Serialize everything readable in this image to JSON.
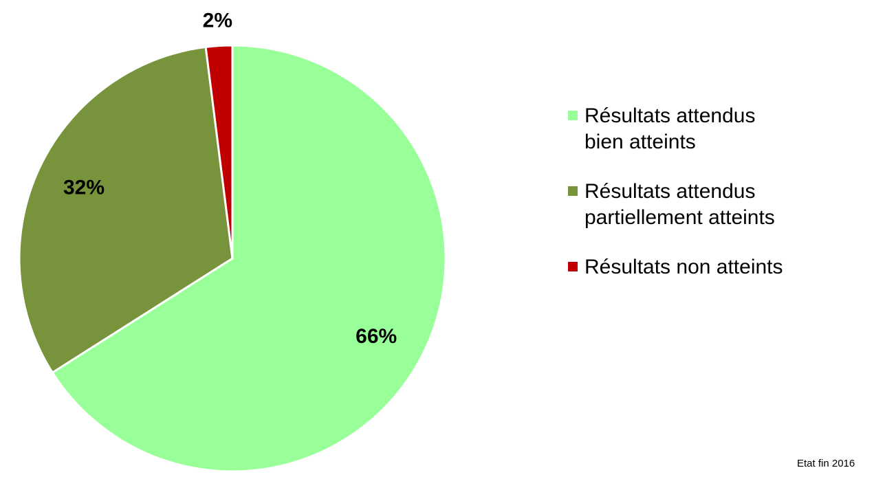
{
  "chart_data": {
    "type": "pie",
    "categories": [
      "Résultats attendus\nbien atteints",
      "Résultats attendus\npartiellement atteints",
      "Résultats non atteints"
    ],
    "values": [
      66,
      32,
      2
    ],
    "value_labels": [
      "66%",
      "32%",
      "2%"
    ],
    "colors": [
      "#99ff99",
      "#77933c",
      "#c00000"
    ],
    "legend": "right",
    "annotation": "Etat fin 2016"
  }
}
